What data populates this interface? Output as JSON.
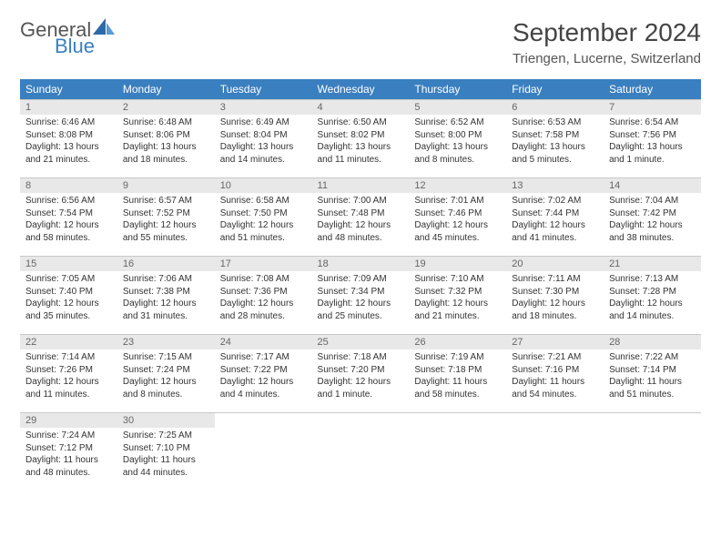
{
  "logo": {
    "text1": "General",
    "text2": "Blue"
  },
  "title": "September 2024",
  "location": "Triengen, Lucerne, Switzerland",
  "colors": {
    "header_bg": "#3a7fbf",
    "header_text": "#ffffff",
    "daynum_bg": "#e8e8e8",
    "daynum_text": "#666666",
    "body_text": "#333333",
    "divider": "#c8c8c8",
    "logo_gray": "#555555",
    "logo_blue": "#3a7fbf",
    "page_bg": "#ffffff"
  },
  "weekdays": [
    "Sunday",
    "Monday",
    "Tuesday",
    "Wednesday",
    "Thursday",
    "Friday",
    "Saturday"
  ],
  "days": [
    {
      "n": "1",
      "sunrise": "6:46 AM",
      "sunset": "8:08 PM",
      "daylight": "13 hours and 21 minutes."
    },
    {
      "n": "2",
      "sunrise": "6:48 AM",
      "sunset": "8:06 PM",
      "daylight": "13 hours and 18 minutes."
    },
    {
      "n": "3",
      "sunrise": "6:49 AM",
      "sunset": "8:04 PM",
      "daylight": "13 hours and 14 minutes."
    },
    {
      "n": "4",
      "sunrise": "6:50 AM",
      "sunset": "8:02 PM",
      "daylight": "13 hours and 11 minutes."
    },
    {
      "n": "5",
      "sunrise": "6:52 AM",
      "sunset": "8:00 PM",
      "daylight": "13 hours and 8 minutes."
    },
    {
      "n": "6",
      "sunrise": "6:53 AM",
      "sunset": "7:58 PM",
      "daylight": "13 hours and 5 minutes."
    },
    {
      "n": "7",
      "sunrise": "6:54 AM",
      "sunset": "7:56 PM",
      "daylight": "13 hours and 1 minute."
    },
    {
      "n": "8",
      "sunrise": "6:56 AM",
      "sunset": "7:54 PM",
      "daylight": "12 hours and 58 minutes."
    },
    {
      "n": "9",
      "sunrise": "6:57 AM",
      "sunset": "7:52 PM",
      "daylight": "12 hours and 55 minutes."
    },
    {
      "n": "10",
      "sunrise": "6:58 AM",
      "sunset": "7:50 PM",
      "daylight": "12 hours and 51 minutes."
    },
    {
      "n": "11",
      "sunrise": "7:00 AM",
      "sunset": "7:48 PM",
      "daylight": "12 hours and 48 minutes."
    },
    {
      "n": "12",
      "sunrise": "7:01 AM",
      "sunset": "7:46 PM",
      "daylight": "12 hours and 45 minutes."
    },
    {
      "n": "13",
      "sunrise": "7:02 AM",
      "sunset": "7:44 PM",
      "daylight": "12 hours and 41 minutes."
    },
    {
      "n": "14",
      "sunrise": "7:04 AM",
      "sunset": "7:42 PM",
      "daylight": "12 hours and 38 minutes."
    },
    {
      "n": "15",
      "sunrise": "7:05 AM",
      "sunset": "7:40 PM",
      "daylight": "12 hours and 35 minutes."
    },
    {
      "n": "16",
      "sunrise": "7:06 AM",
      "sunset": "7:38 PM",
      "daylight": "12 hours and 31 minutes."
    },
    {
      "n": "17",
      "sunrise": "7:08 AM",
      "sunset": "7:36 PM",
      "daylight": "12 hours and 28 minutes."
    },
    {
      "n": "18",
      "sunrise": "7:09 AM",
      "sunset": "7:34 PM",
      "daylight": "12 hours and 25 minutes."
    },
    {
      "n": "19",
      "sunrise": "7:10 AM",
      "sunset": "7:32 PM",
      "daylight": "12 hours and 21 minutes."
    },
    {
      "n": "20",
      "sunrise": "7:11 AM",
      "sunset": "7:30 PM",
      "daylight": "12 hours and 18 minutes."
    },
    {
      "n": "21",
      "sunrise": "7:13 AM",
      "sunset": "7:28 PM",
      "daylight": "12 hours and 14 minutes."
    },
    {
      "n": "22",
      "sunrise": "7:14 AM",
      "sunset": "7:26 PM",
      "daylight": "12 hours and 11 minutes."
    },
    {
      "n": "23",
      "sunrise": "7:15 AM",
      "sunset": "7:24 PM",
      "daylight": "12 hours and 8 minutes."
    },
    {
      "n": "24",
      "sunrise": "7:17 AM",
      "sunset": "7:22 PM",
      "daylight": "12 hours and 4 minutes."
    },
    {
      "n": "25",
      "sunrise": "7:18 AM",
      "sunset": "7:20 PM",
      "daylight": "12 hours and 1 minute."
    },
    {
      "n": "26",
      "sunrise": "7:19 AM",
      "sunset": "7:18 PM",
      "daylight": "11 hours and 58 minutes."
    },
    {
      "n": "27",
      "sunrise": "7:21 AM",
      "sunset": "7:16 PM",
      "daylight": "11 hours and 54 minutes."
    },
    {
      "n": "28",
      "sunrise": "7:22 AM",
      "sunset": "7:14 PM",
      "daylight": "11 hours and 51 minutes."
    },
    {
      "n": "29",
      "sunrise": "7:24 AM",
      "sunset": "7:12 PM",
      "daylight": "11 hours and 48 minutes."
    },
    {
      "n": "30",
      "sunrise": "7:25 AM",
      "sunset": "7:10 PM",
      "daylight": "11 hours and 44 minutes."
    }
  ],
  "labels": {
    "sunrise": "Sunrise:",
    "sunset": "Sunset:",
    "daylight": "Daylight:"
  }
}
